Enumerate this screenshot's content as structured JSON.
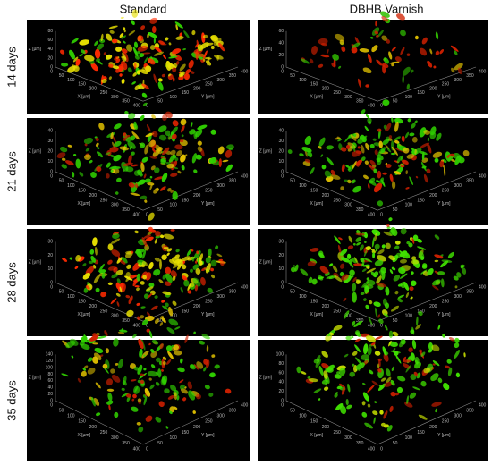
{
  "header": {
    "columns": [
      "Standard",
      "DBHB Varnish"
    ]
  },
  "rows": [
    {
      "label": "14 days",
      "panels": [
        {
          "z_label": "Z [µm]",
          "x_label": "X [µm]",
          "y_label": "Y [µm]",
          "z_ticks": [
            0,
            20,
            40,
            60,
            80
          ],
          "x_ticks": [
            0,
            50,
            100,
            150,
            200,
            250,
            300,
            350,
            400
          ],
          "y_ticks": [
            0,
            50,
            100,
            150,
            200,
            250,
            300,
            350,
            400
          ]
        },
        {
          "z_label": "Z [µm]",
          "x_label": "X [µm]",
          "y_label": "Y [µm]",
          "z_ticks": [
            0,
            20,
            40,
            60
          ],
          "x_ticks": [
            0,
            50,
            100,
            150,
            200,
            250,
            300,
            350,
            400
          ],
          "y_ticks": [
            0,
            50,
            100,
            150,
            200,
            250,
            300,
            350,
            400
          ]
        }
      ]
    },
    {
      "label": "21 days",
      "panels": [
        {
          "z_label": "Z [µm]",
          "x_label": "X [µm]",
          "y_label": "Y [µm]",
          "z_ticks": [
            0,
            10,
            20,
            30,
            40
          ],
          "x_ticks": [
            0,
            50,
            100,
            150,
            200,
            250,
            300,
            350,
            400
          ],
          "y_ticks": [
            0,
            50,
            100,
            150,
            200,
            250,
            300,
            350,
            400
          ]
        },
        {
          "z_label": "Z [µm]",
          "x_label": "X [µm]",
          "y_label": "Y [µm]",
          "z_ticks": [
            0,
            10,
            20,
            30,
            40
          ],
          "x_ticks": [
            0,
            50,
            100,
            150,
            200,
            250,
            300,
            350,
            400
          ],
          "y_ticks": [
            0,
            50,
            100,
            150,
            200,
            250,
            300,
            350,
            400
          ]
        }
      ]
    },
    {
      "label": "28 days",
      "panels": [
        {
          "z_label": "Z [µm]",
          "x_label": "X [µm]",
          "y_label": "Y [µm]",
          "z_ticks": [
            0,
            10,
            20,
            30
          ],
          "x_ticks": [
            0,
            50,
            100,
            150,
            200,
            250,
            300,
            350,
            400
          ],
          "y_ticks": [
            0,
            50,
            100,
            150,
            200,
            250,
            300,
            350,
            400
          ]
        },
        {
          "z_label": "Z [µm]",
          "x_label": "X [µm]",
          "y_label": "Y [µm]",
          "z_ticks": [
            0,
            10,
            20,
            30
          ],
          "x_ticks": [
            0,
            50,
            100,
            150,
            200,
            250,
            300,
            350,
            400
          ],
          "y_ticks": [
            0,
            50,
            100,
            150,
            200,
            250,
            300,
            350,
            400
          ]
        }
      ]
    },
    {
      "label": "35 days",
      "panels": [
        {
          "z_label": "Z [µm]",
          "x_label": "X [µm]",
          "y_label": "Y [µm]",
          "z_ticks": [
            0,
            20,
            40,
            60,
            80,
            100,
            120,
            140
          ],
          "x_ticks": [
            0,
            50,
            100,
            150,
            200,
            250,
            300,
            350,
            400
          ],
          "y_ticks": [
            0,
            50,
            100,
            150,
            200,
            250,
            300,
            350,
            400
          ]
        },
        {
          "z_label": "Z [µm]",
          "x_label": "X [µm]",
          "y_label": "Y [µm]",
          "z_ticks": [
            0,
            20,
            40,
            60,
            80,
            100
          ],
          "x_ticks": [
            0,
            50,
            100,
            150,
            200,
            250,
            300,
            350,
            400
          ],
          "y_ticks": [
            0,
            50,
            100,
            150,
            200,
            250,
            300,
            350,
            400
          ]
        }
      ]
    }
  ]
}
